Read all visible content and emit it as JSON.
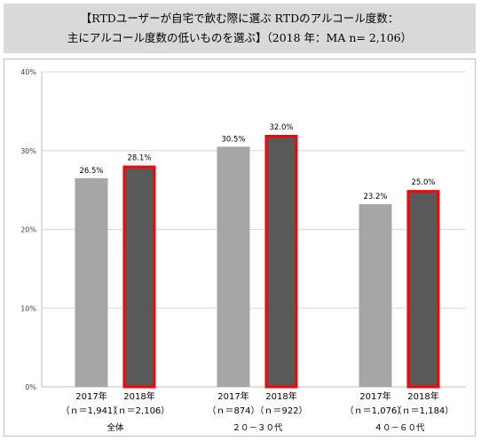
{
  "title": {
    "line1": "【RTDユーザーが自宅で飲む際に選ぶ RTDのアルコール度数：",
    "line2": "主にアルコール度数の低いものを選ぶ】（2018 年：MA n= 2,106）"
  },
  "chart_data": {
    "type": "bar",
    "title": "【RTDユーザーが自宅で飲む際に選ぶ RTDのアルコール度数：主にアルコール度数の低いものを選ぶ】（2018 年：MA n= 2,106）",
    "ylim": [
      0,
      40
    ],
    "yticks": [
      "0%",
      "10%",
      "20%",
      "30%",
      "40%"
    ],
    "grid": true,
    "highlight_color": "#ff0000",
    "colors": {
      "2017": "#a6a6a6",
      "2018": "#595959"
    },
    "groups": [
      {
        "name": "全体",
        "bars": [
          {
            "year": "2017年",
            "n": "（ｎ＝1,941）",
            "value": 26.5,
            "label": "26.5%"
          },
          {
            "year": "2018年",
            "n": "（ｎ＝2,106）",
            "value": 28.1,
            "label": "28.1%"
          }
        ]
      },
      {
        "name": "２０－３０代",
        "bars": [
          {
            "year": "2017年",
            "n": "（ｎ＝874）",
            "value": 30.5,
            "label": "30.5%"
          },
          {
            "year": "2018年",
            "n": "（ｎ＝922）",
            "value": 32.0,
            "label": "32.0%"
          }
        ]
      },
      {
        "name": "４０－６０代",
        "bars": [
          {
            "year": "2017年",
            "n": "（ｎ＝1,076）",
            "value": 23.2,
            "label": "23.2%"
          },
          {
            "year": "2018年",
            "n": "（ｎ＝1,184）",
            "value": 25.0,
            "label": "25.0%"
          }
        ]
      }
    ]
  }
}
